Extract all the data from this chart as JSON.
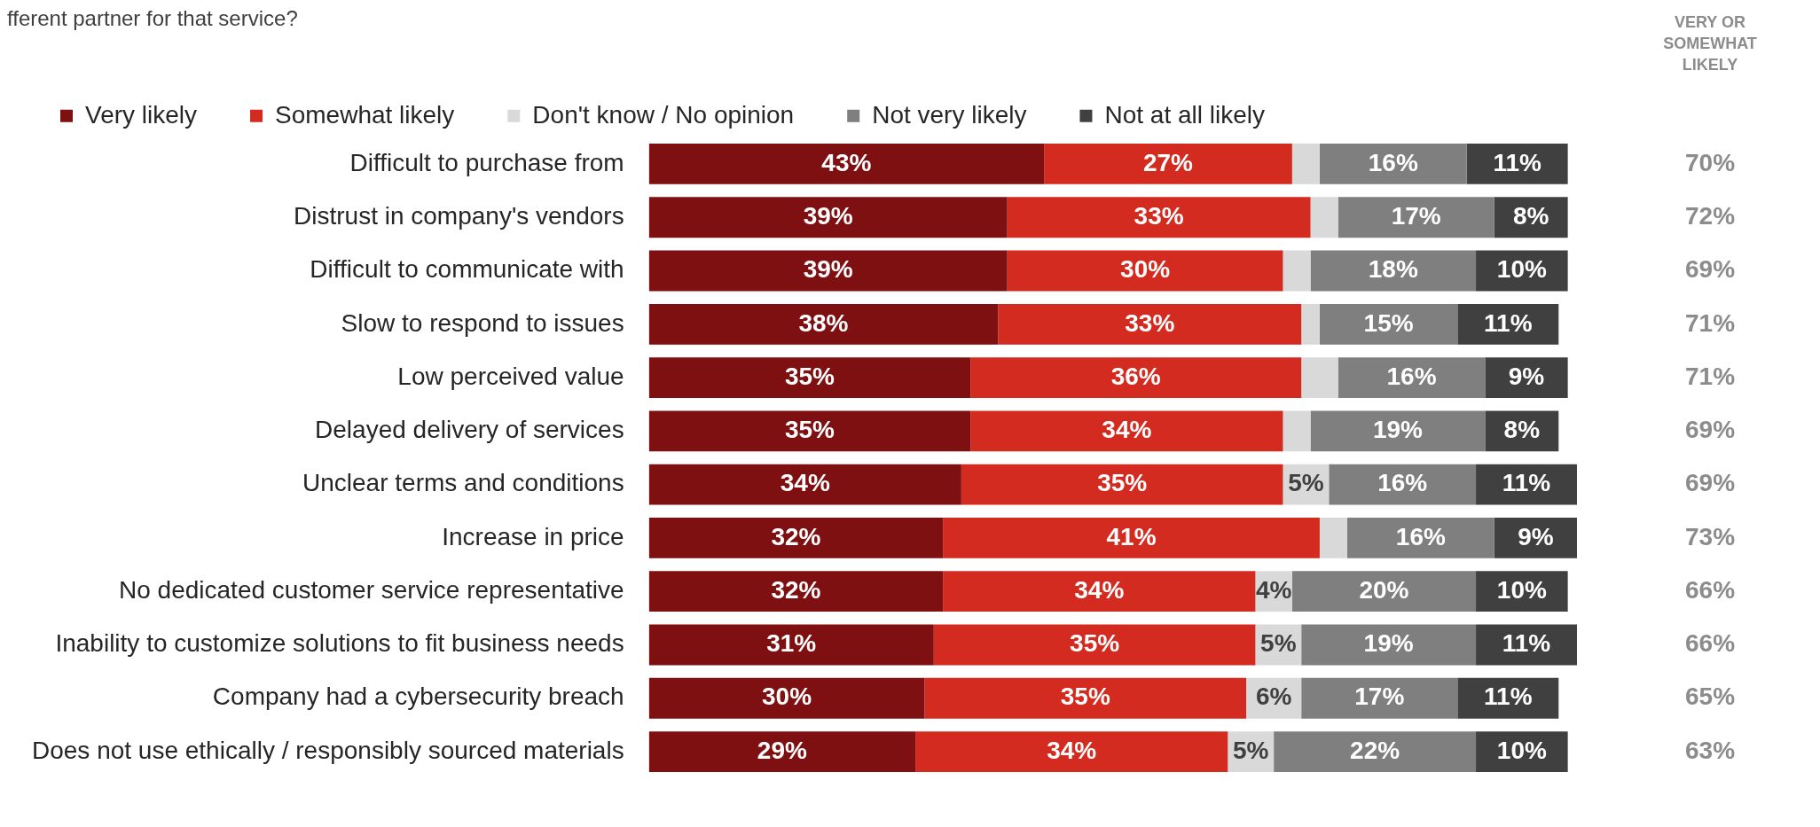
{
  "chart_data": {
    "type": "bar",
    "orientation": "horizontal",
    "stacked": true,
    "title": "fferent partner for that service?",
    "categories": [
      "Difficult to purchase from",
      "Distrust in company's vendors",
      "Difficult to communicate with",
      "Slow to respond to issues",
      "Low perceived value",
      "Delayed delivery of services",
      "Unclear terms and conditions",
      "Increase in price",
      "No dedicated customer service representative",
      "Inability to customize solutions to fit business needs",
      "Company had a cybersecurity breach",
      "Does not use ethically / responsibly sourced materials"
    ],
    "series": [
      {
        "name": "Very likely",
        "color": "#7f1012",
        "values": [
          43,
          39,
          39,
          38,
          35,
          35,
          34,
          32,
          32,
          31,
          30,
          29
        ],
        "value_labels": [
          "43%",
          "39%",
          "39%",
          "38%",
          "35%",
          "35%",
          "34%",
          "32%",
          "32%",
          "31%",
          "30%",
          "29%"
        ]
      },
      {
        "name": "Somewhat likely",
        "color": "#d42b20",
        "values": [
          27,
          33,
          30,
          33,
          36,
          34,
          35,
          41,
          34,
          35,
          35,
          34
        ],
        "value_labels": [
          "27%",
          "33%",
          "30%",
          "33%",
          "36%",
          "34%",
          "35%",
          "41%",
          "34%",
          "35%",
          "35%",
          "34%"
        ]
      },
      {
        "name": "Don't know / No opinion",
        "color": "#d9d9d9",
        "values": [
          3,
          3,
          3,
          2,
          4,
          3,
          5,
          3,
          4,
          5,
          6,
          5
        ],
        "value_labels": [
          null,
          null,
          null,
          null,
          null,
          null,
          "5%",
          null,
          "4%",
          "5%",
          "6%",
          "5%"
        ]
      },
      {
        "name": "Not very likely",
        "color": "#7f7f7f",
        "values": [
          16,
          17,
          18,
          15,
          16,
          19,
          16,
          16,
          20,
          19,
          17,
          22
        ],
        "value_labels": [
          "16%",
          "17%",
          "18%",
          "15%",
          "16%",
          "19%",
          "16%",
          "16%",
          "20%",
          "19%",
          "17%",
          "22%"
        ]
      },
      {
        "name": "Not at all likely",
        "color": "#404040",
        "values": [
          11,
          8,
          10,
          11,
          9,
          8,
          11,
          9,
          10,
          11,
          11,
          10
        ],
        "value_labels": [
          "11%",
          "8%",
          "10%",
          "11%",
          "9%",
          "8%",
          "11%",
          "9%",
          "10%",
          "11%",
          "11%",
          "10%"
        ]
      }
    ],
    "annotations": [
      "VERY OR SOMEWHAT LIKELY",
      "70%",
      "72%",
      "69%",
      "71%",
      "71%",
      "69%",
      "69%",
      "73%",
      "66%",
      "66%",
      "65%",
      "63%"
    ],
    "xlim": [
      0,
      101
    ],
    "tick_labels": "y",
    "grid": false,
    "legend": "top left"
  }
}
